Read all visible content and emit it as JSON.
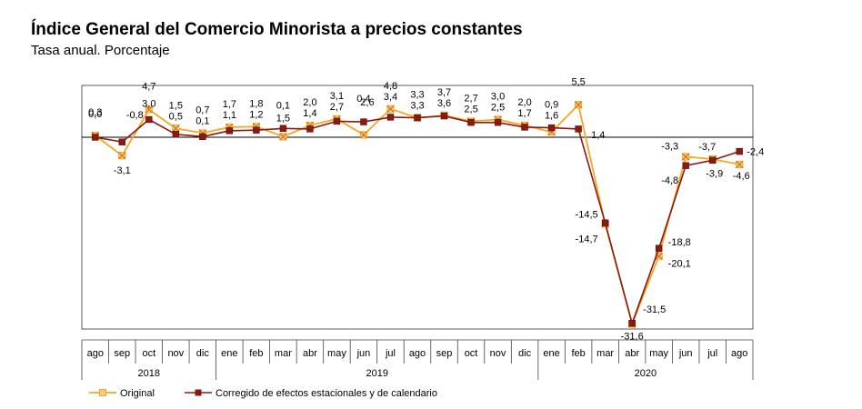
{
  "chart_data": {
    "type": "line",
    "title": "Índice General del Comercio Minorista a precios constantes",
    "subtitle": "Tasa anual. Porcentaje",
    "categories": [
      "ago",
      "sep",
      "oct",
      "nov",
      "dic",
      "ene",
      "feb",
      "mar",
      "abr",
      "may",
      "jun",
      "jul",
      "ago",
      "sep",
      "oct",
      "nov",
      "dic",
      "ene",
      "feb",
      "mar",
      "abr",
      "may",
      "jun",
      "jul",
      "ago"
    ],
    "years": [
      {
        "label": "2018",
        "start": 0,
        "end": 4
      },
      {
        "label": "2019",
        "start": 5,
        "end": 16
      },
      {
        "label": "2020",
        "start": 17,
        "end": 24
      }
    ],
    "ylim": [
      -33,
      6
    ],
    "legend_position": "bottom-left",
    "series": [
      {
        "name": "Original",
        "color": "#F5A623",
        "marker": "square-x",
        "values": [
          0.3,
          -3.1,
          4.7,
          1.5,
          0.7,
          1.7,
          1.8,
          0.1,
          2.0,
          3.1,
          0.4,
          4.8,
          3.3,
          3.7,
          2.7,
          3.0,
          2.0,
          0.9,
          5.5,
          -14.7,
          -31.6,
          -20.1,
          -3.3,
          -3.7,
          -4.6
        ],
        "labels": [
          "0,3",
          "-3,1",
          "4,7",
          "1,5",
          "0,7",
          "1,7",
          "1,8",
          "0,1",
          "2,0",
          "3,1",
          "0,4",
          "4,8",
          "3,3",
          "3,7",
          "2,7",
          "3,0",
          "2,0",
          "0,9",
          "5,5",
          "-14,7",
          "-31,6",
          "-20,1",
          "-3,3",
          "-3,7",
          "-4,6"
        ]
      },
      {
        "name": "Corregido de efectos estacionales y de calendario",
        "color": "#8B1A10",
        "marker": "square",
        "values": [
          0.0,
          -0.8,
          3.0,
          0.5,
          0.1,
          1.1,
          1.2,
          1.5,
          1.4,
          2.7,
          2.6,
          3.4,
          3.3,
          3.6,
          2.5,
          2.5,
          1.7,
          1.6,
          1.4,
          -14.5,
          -31.5,
          -18.8,
          -4.8,
          -3.9,
          -2.4
        ],
        "labels": [
          "0,0",
          "-0,8",
          "3,0",
          "0,5",
          "0,1",
          "1,1",
          "1,2",
          "1,5",
          "1,4",
          "2,7",
          "2,6",
          "3,4",
          "3,3",
          "3,6",
          "2,5",
          "2,5",
          "1,7",
          "1,6",
          "1,4",
          "-14,5",
          "-31,5",
          "-18,8",
          "-4,8",
          "-3,9",
          "-2,4"
        ]
      }
    ]
  }
}
